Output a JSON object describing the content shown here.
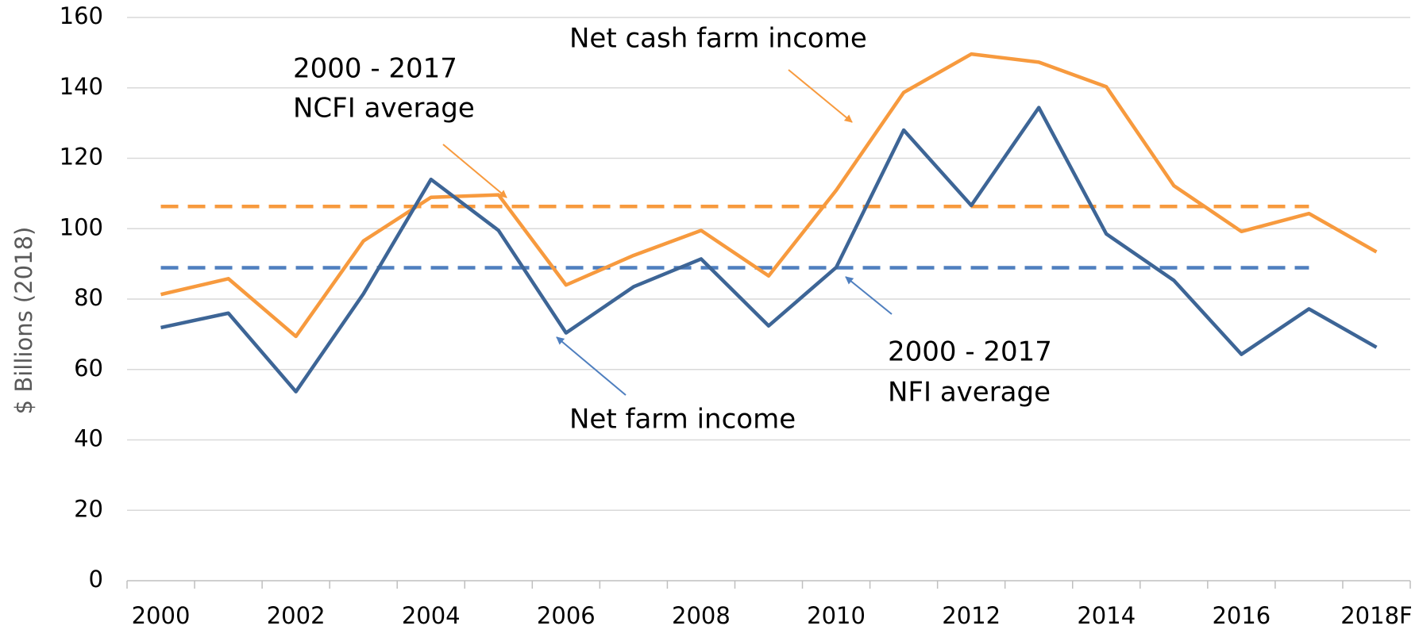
{
  "chart_data": {
    "type": "line",
    "ylabel": "$ Billions (2018)",
    "categories": [
      "2000",
      null,
      "2002",
      null,
      "2004",
      null,
      "2006",
      null,
      "2008",
      null,
      "2010",
      null,
      "2012",
      null,
      "2014",
      null,
      "2016",
      null,
      "2018F"
    ],
    "series": [
      {
        "name": "Net cash farm income",
        "color": "#f79a3e",
        "values": [
          81.3,
          85.8,
          69.4,
          96.5,
          108.9,
          109.6,
          84,
          92.4,
          99.5,
          86.6,
          110.9,
          138.7,
          149.6,
          147.3,
          140.3,
          112.2,
          99.2,
          104.3,
          93.4
        ]
      },
      {
        "name": "Net farm income",
        "color": "#3d6596",
        "values": [
          71.9,
          76,
          53.7,
          81.5,
          114,
          99.5,
          70.4,
          83.5,
          91.4,
          72.4,
          89,
          128,
          106.6,
          134.4,
          98.5,
          85.3,
          64.3,
          77.2,
          66.3
        ]
      }
    ],
    "reference_lines": [
      {
        "label": [
          "2000 - 2017",
          "NCFI average"
        ],
        "value": 106.3,
        "color": "#f79a3e"
      },
      {
        "label": [
          "2000 - 2017",
          "NFI average"
        ],
        "value": 88.9,
        "color": "#4f7fbf"
      }
    ],
    "ylim": [
      0,
      160
    ],
    "yticks": [
      0,
      20,
      40,
      60,
      80,
      100,
      120,
      140,
      160
    ],
    "grid": true
  }
}
